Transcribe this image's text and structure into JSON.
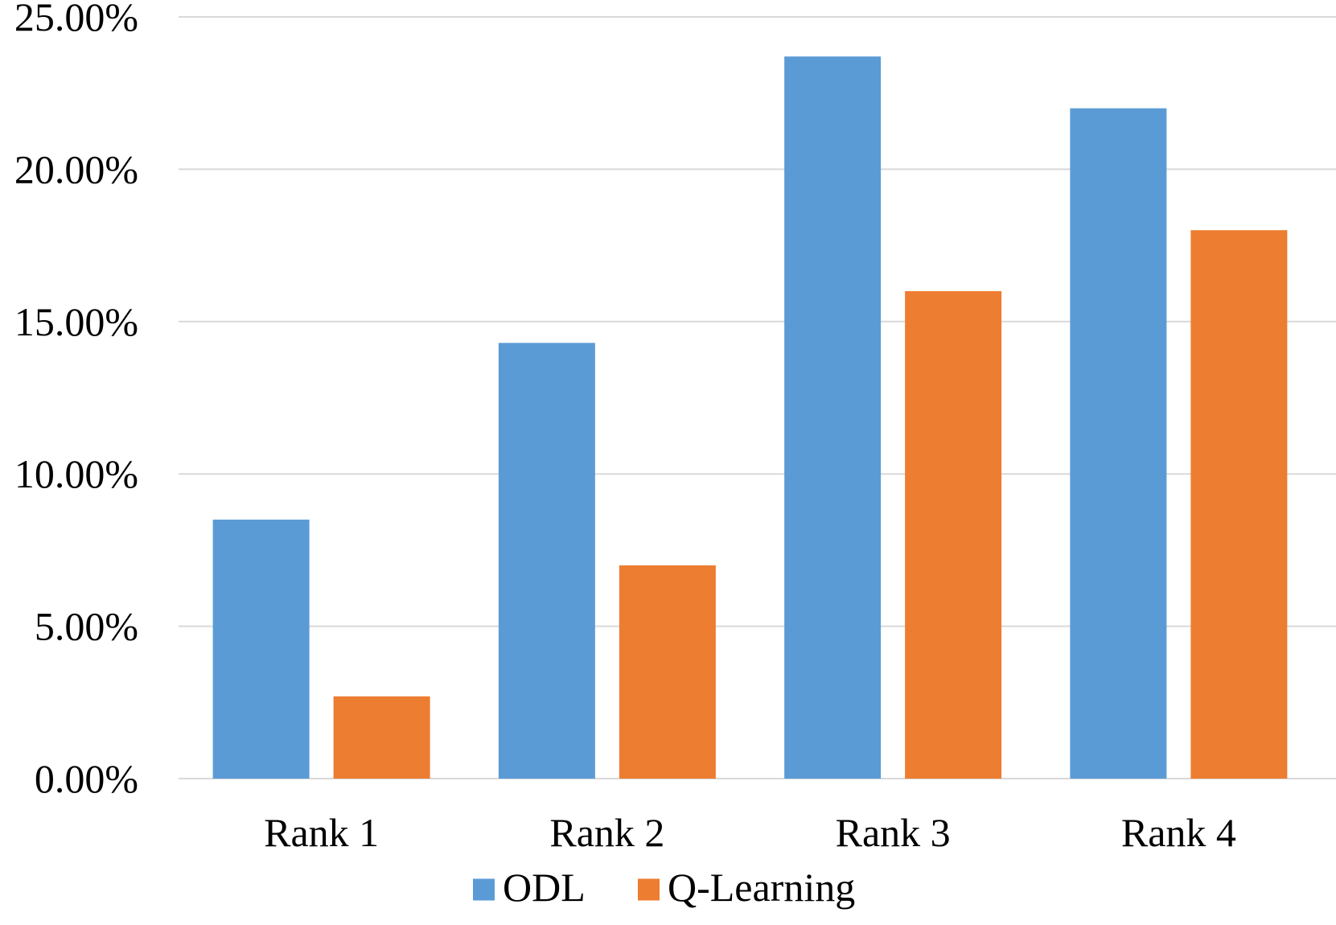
{
  "chart_data": {
    "type": "bar",
    "title": "",
    "xlabel": "",
    "ylabel": "",
    "categories": [
      "Rank 1",
      "Rank 2",
      "Rank 3",
      "Rank 4"
    ],
    "series": [
      {
        "name": "ODL",
        "color": "#5b9bd5",
        "values": [
          8.5,
          14.3,
          23.7,
          22.0
        ]
      },
      {
        "name": "Q-Learning",
        "color": "#ed7d31",
        "values": [
          2.7,
          7.0,
          16.0,
          18.0
        ]
      }
    ],
    "ylim": [
      0,
      25
    ],
    "y_ticks": [
      "0.00%",
      "5.00%",
      "10.00%",
      "15.00%",
      "20.00%",
      "25.00%"
    ],
    "y_tick_values": [
      0,
      5,
      10,
      15,
      20,
      25
    ],
    "grid": true,
    "legend_position": "bottom-center"
  }
}
